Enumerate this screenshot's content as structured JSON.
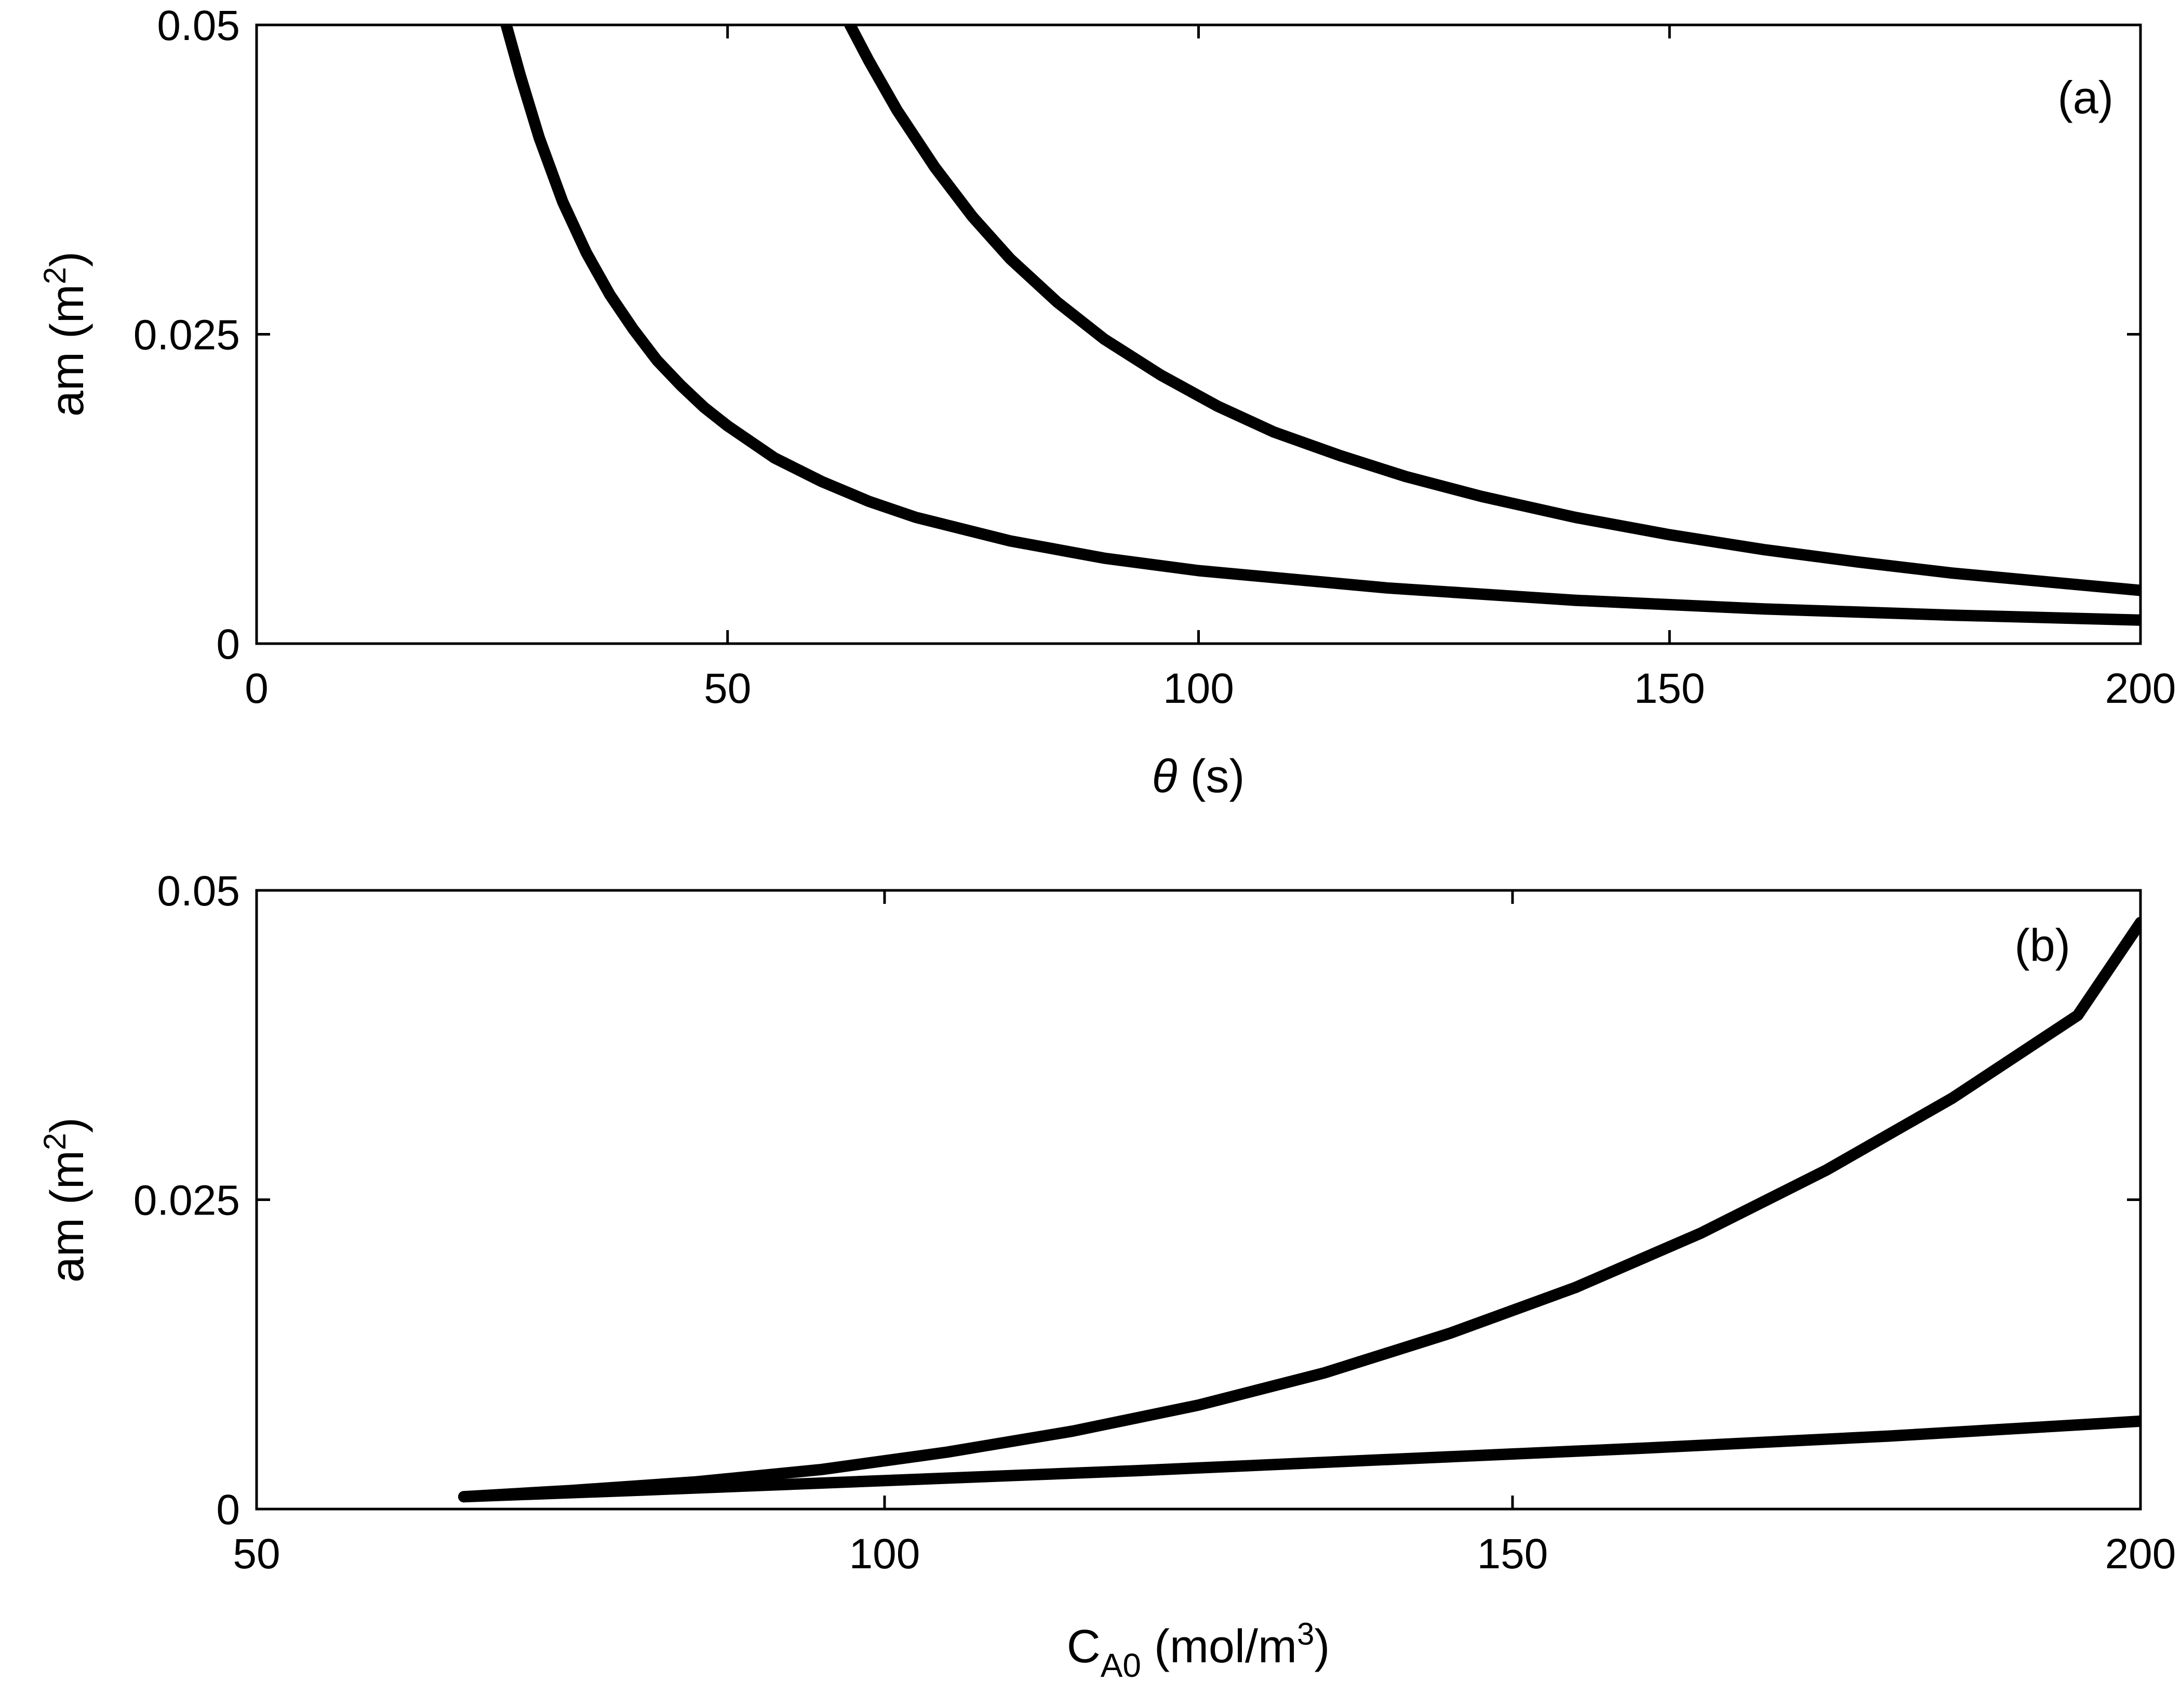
{
  "chart_data": [
    {
      "type": "line",
      "panel_label": "(a)",
      "xlabel_symbol": "θ",
      "xlabel_unit": " (s)",
      "ylabel_text": "am (m",
      "ylabel_sup": "2",
      "ylabel_close": ")",
      "xlim": [
        0,
        200
      ],
      "ylim": [
        0,
        0.05
      ],
      "xticks": [
        0,
        50,
        100,
        150,
        200
      ],
      "xtick_labels": [
        "0",
        "50",
        "100",
        "150",
        "200"
      ],
      "yticks": [
        0,
        0.025,
        0.05
      ],
      "ytick_labels": [
        "0",
        "0.025",
        "0.05"
      ],
      "series": [
        {
          "name": "lower curve",
          "x": [
            26.5,
            28,
            30,
            32.5,
            35,
            37.5,
            40,
            42.5,
            45,
            47.5,
            50,
            55,
            60,
            65,
            70,
            80,
            90,
            100,
            120,
            140,
            160,
            180,
            200
          ],
          "y": [
            0.05,
            0.0459,
            0.0409,
            0.0357,
            0.0316,
            0.0282,
            0.0254,
            0.0229,
            0.0209,
            0.0191,
            0.0176,
            0.015,
            0.0131,
            0.0115,
            0.0102,
            0.0083,
            0.0069,
            0.0059,
            0.0045,
            0.0035,
            0.0028,
            0.0023,
            0.0019
          ]
        },
        {
          "name": "upper curve",
          "x": [
            63,
            65,
            68,
            72,
            76,
            80,
            85,
            90,
            96,
            102,
            108,
            115,
            122,
            130,
            140,
            150,
            160,
            170,
            180,
            190,
            200
          ],
          "y": [
            0.05,
            0.0471,
            0.0431,
            0.0385,
            0.0345,
            0.0311,
            0.0276,
            0.0246,
            0.0217,
            0.0192,
            0.0171,
            0.0152,
            0.0135,
            0.0119,
            0.0102,
            0.0088,
            0.0076,
            0.0066,
            0.0057,
            0.005,
            0.0043
          ]
        }
      ]
    },
    {
      "type": "line",
      "panel_label": "(b)",
      "xlabel_text": "C",
      "xlabel_sub": "A0",
      "xlabel_unit": " (mol/m",
      "xlabel_sup": "3",
      "xlabel_close": ")",
      "ylabel_text": "am (m",
      "ylabel_sup": "2",
      "ylabel_close": ")",
      "xlim": [
        50,
        200
      ],
      "ylim": [
        0,
        0.05
      ],
      "xticks": [
        50,
        100,
        150,
        200
      ],
      "xtick_labels": [
        "50",
        "100",
        "150",
        "200"
      ],
      "yticks": [
        0,
        0.025,
        0.05
      ],
      "ytick_labels": [
        "0",
        "0.025",
        "0.05"
      ],
      "series": [
        {
          "name": "steep curve",
          "x": [
            66.5,
            75,
            85,
            95,
            105,
            115,
            125,
            135,
            145,
            155,
            165,
            175,
            185,
            195,
            200
          ],
          "y": [
            0.001,
            0.0015,
            0.0022,
            0.0032,
            0.0046,
            0.0063,
            0.0084,
            0.011,
            0.0142,
            0.0179,
            0.0223,
            0.0274,
            0.0332,
            0.0399,
            0.0474
          ]
        },
        {
          "name": "linear curve",
          "x": [
            66.5,
            80,
            100,
            120,
            140,
            160,
            180,
            200
          ],
          "y": [
            0.001,
            0.0015,
            0.0023,
            0.0031,
            0.004,
            0.0049,
            0.0059,
            0.0071
          ]
        }
      ]
    }
  ]
}
